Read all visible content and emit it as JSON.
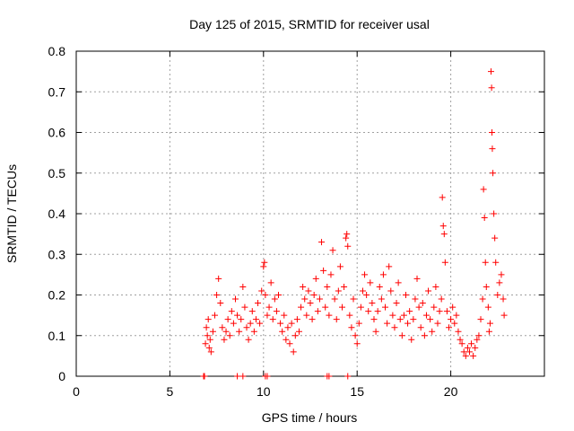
{
  "chart_data": {
    "type": "scatter",
    "title": "Day 125 of 2015, SRMTID for receiver usal",
    "xlabel": "GPS time / hours",
    "ylabel": "SRMTID / TECUs",
    "xlim": [
      0,
      25
    ],
    "ylim": [
      0,
      0.8
    ],
    "x_ticks": [
      0,
      5,
      10,
      15,
      20
    ],
    "x_tick_labels": [
      "0",
      "5",
      "10",
      "15",
      "20"
    ],
    "y_ticks": [
      0,
      0.1,
      0.2,
      0.3,
      0.4,
      0.5,
      0.6,
      0.7,
      0.8
    ],
    "y_tick_labels": [
      "0",
      "0.1",
      "0.2",
      "0.3",
      "0.4",
      "0.5",
      "0.6",
      "0.7",
      "0.8"
    ],
    "grid": true,
    "marker": "+",
    "color": "#ff0000",
    "series": [
      {
        "name": "SRMTID",
        "points": [
          [
            6.8,
            0.0
          ],
          [
            6.85,
            0.0
          ],
          [
            8.6,
            0.0
          ],
          [
            8.9,
            0.0
          ],
          [
            10.1,
            0.0
          ],
          [
            10.2,
            0.0
          ],
          [
            13.4,
            0.0
          ],
          [
            13.5,
            0.0
          ],
          [
            14.5,
            0.0
          ],
          [
            6.9,
            0.08
          ],
          [
            6.95,
            0.12
          ],
          [
            7.0,
            0.1
          ],
          [
            7.05,
            0.14
          ],
          [
            7.1,
            0.07
          ],
          [
            7.15,
            0.09
          ],
          [
            7.2,
            0.06
          ],
          [
            7.3,
            0.11
          ],
          [
            7.4,
            0.15
          ],
          [
            7.5,
            0.2
          ],
          [
            7.6,
            0.24
          ],
          [
            7.7,
            0.18
          ],
          [
            7.8,
            0.12
          ],
          [
            7.9,
            0.09
          ],
          [
            8.0,
            0.11
          ],
          [
            8.1,
            0.14
          ],
          [
            8.2,
            0.1
          ],
          [
            8.3,
            0.16
          ],
          [
            8.4,
            0.13
          ],
          [
            8.5,
            0.19
          ],
          [
            8.6,
            0.15
          ],
          [
            8.7,
            0.11
          ],
          [
            8.8,
            0.14
          ],
          [
            8.9,
            0.22
          ],
          [
            9.0,
            0.17
          ],
          [
            9.1,
            0.12
          ],
          [
            9.2,
            0.09
          ],
          [
            9.3,
            0.13
          ],
          [
            9.4,
            0.16
          ],
          [
            9.5,
            0.11
          ],
          [
            9.6,
            0.14
          ],
          [
            9.7,
            0.18
          ],
          [
            9.8,
            0.13
          ],
          [
            9.9,
            0.21
          ],
          [
            10.0,
            0.27
          ],
          [
            10.05,
            0.28
          ],
          [
            10.1,
            0.2
          ],
          [
            10.2,
            0.15
          ],
          [
            10.3,
            0.17
          ],
          [
            10.4,
            0.23
          ],
          [
            10.5,
            0.14
          ],
          [
            10.6,
            0.19
          ],
          [
            10.7,
            0.16
          ],
          [
            10.8,
            0.2
          ],
          [
            10.9,
            0.13
          ],
          [
            11.0,
            0.11
          ],
          [
            11.1,
            0.15
          ],
          [
            11.2,
            0.09
          ],
          [
            11.3,
            0.12
          ],
          [
            11.4,
            0.08
          ],
          [
            11.5,
            0.13
          ],
          [
            11.6,
            0.06
          ],
          [
            11.7,
            0.1
          ],
          [
            11.8,
            0.14
          ],
          [
            11.9,
            0.11
          ],
          [
            12.0,
            0.17
          ],
          [
            12.1,
            0.22
          ],
          [
            12.2,
            0.19
          ],
          [
            12.3,
            0.15
          ],
          [
            12.4,
            0.21
          ],
          [
            12.5,
            0.18
          ],
          [
            12.6,
            0.14
          ],
          [
            12.7,
            0.2
          ],
          [
            12.8,
            0.24
          ],
          [
            12.9,
            0.16
          ],
          [
            13.0,
            0.19
          ],
          [
            13.1,
            0.33
          ],
          [
            13.2,
            0.26
          ],
          [
            13.3,
            0.17
          ],
          [
            13.4,
            0.22
          ],
          [
            13.5,
            0.15
          ],
          [
            13.6,
            0.25
          ],
          [
            13.7,
            0.31
          ],
          [
            13.8,
            0.19
          ],
          [
            13.9,
            0.14
          ],
          [
            14.0,
            0.21
          ],
          [
            14.1,
            0.27
          ],
          [
            14.2,
            0.17
          ],
          [
            14.3,
            0.22
          ],
          [
            14.4,
            0.34
          ],
          [
            14.45,
            0.35
          ],
          [
            14.5,
            0.32
          ],
          [
            14.6,
            0.15
          ],
          [
            14.7,
            0.12
          ],
          [
            14.8,
            0.19
          ],
          [
            14.9,
            0.1
          ],
          [
            15.0,
            0.08
          ],
          [
            15.1,
            0.13
          ],
          [
            15.2,
            0.17
          ],
          [
            15.3,
            0.21
          ],
          [
            15.4,
            0.25
          ],
          [
            15.5,
            0.2
          ],
          [
            15.6,
            0.16
          ],
          [
            15.7,
            0.23
          ],
          [
            15.8,
            0.18
          ],
          [
            15.9,
            0.14
          ],
          [
            16.0,
            0.11
          ],
          [
            16.1,
            0.16
          ],
          [
            16.2,
            0.22
          ],
          [
            16.3,
            0.19
          ],
          [
            16.4,
            0.25
          ],
          [
            16.5,
            0.17
          ],
          [
            16.6,
            0.13
          ],
          [
            16.7,
            0.27
          ],
          [
            16.8,
            0.21
          ],
          [
            16.9,
            0.15
          ],
          [
            17.0,
            0.12
          ],
          [
            17.1,
            0.18
          ],
          [
            17.2,
            0.23
          ],
          [
            17.3,
            0.14
          ],
          [
            17.4,
            0.1
          ],
          [
            17.5,
            0.15
          ],
          [
            17.6,
            0.2
          ],
          [
            17.7,
            0.13
          ],
          [
            17.8,
            0.16
          ],
          [
            17.9,
            0.09
          ],
          [
            18.0,
            0.14
          ],
          [
            18.1,
            0.19
          ],
          [
            18.2,
            0.24
          ],
          [
            18.3,
            0.17
          ],
          [
            18.4,
            0.12
          ],
          [
            18.5,
            0.18
          ],
          [
            18.6,
            0.1
          ],
          [
            18.7,
            0.15
          ],
          [
            18.8,
            0.21
          ],
          [
            18.9,
            0.14
          ],
          [
            19.0,
            0.11
          ],
          [
            19.1,
            0.17
          ],
          [
            19.2,
            0.22
          ],
          [
            19.3,
            0.13
          ],
          [
            19.4,
            0.16
          ],
          [
            19.5,
            0.19
          ],
          [
            19.55,
            0.44
          ],
          [
            19.6,
            0.37
          ],
          [
            19.65,
            0.35
          ],
          [
            19.7,
            0.28
          ],
          [
            19.8,
            0.16
          ],
          [
            19.9,
            0.12
          ],
          [
            20.0,
            0.14
          ],
          [
            20.1,
            0.17
          ],
          [
            20.2,
            0.13
          ],
          [
            20.3,
            0.15
          ],
          [
            20.4,
            0.11
          ],
          [
            20.5,
            0.09
          ],
          [
            20.6,
            0.08
          ],
          [
            20.7,
            0.06
          ],
          [
            20.8,
            0.05
          ],
          [
            20.9,
            0.07
          ],
          [
            21.0,
            0.06
          ],
          [
            21.1,
            0.08
          ],
          [
            21.2,
            0.05
          ],
          [
            21.3,
            0.07
          ],
          [
            21.4,
            0.09
          ],
          [
            21.5,
            0.1
          ],
          [
            21.6,
            0.14
          ],
          [
            21.7,
            0.19
          ],
          [
            21.75,
            0.46
          ],
          [
            21.8,
            0.39
          ],
          [
            21.85,
            0.28
          ],
          [
            21.9,
            0.22
          ],
          [
            22.0,
            0.17
          ],
          [
            22.05,
            0.11
          ],
          [
            22.1,
            0.13
          ],
          [
            22.15,
            0.75
          ],
          [
            22.18,
            0.71
          ],
          [
            22.2,
            0.6
          ],
          [
            22.22,
            0.56
          ],
          [
            22.25,
            0.5
          ],
          [
            22.3,
            0.4
          ],
          [
            22.35,
            0.34
          ],
          [
            22.4,
            0.28
          ],
          [
            22.5,
            0.2
          ],
          [
            22.6,
            0.23
          ],
          [
            22.7,
            0.25
          ],
          [
            22.8,
            0.19
          ],
          [
            22.85,
            0.15
          ]
        ]
      }
    ]
  }
}
